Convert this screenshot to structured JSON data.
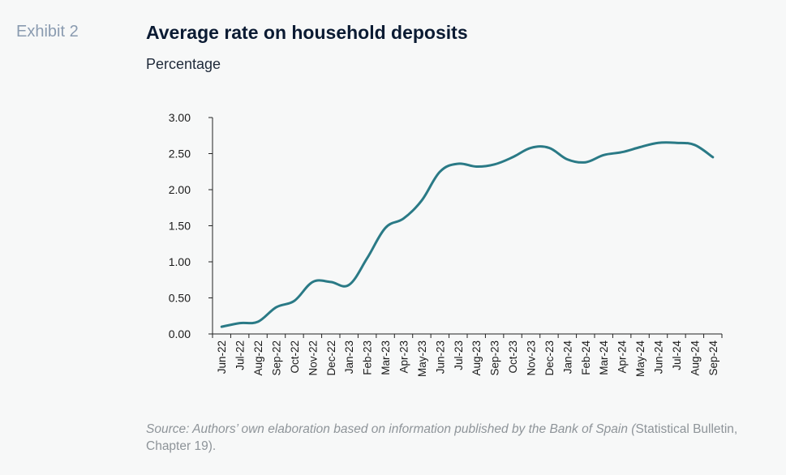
{
  "header": {
    "exhibit": "Exhibit 2",
    "title": "Average rate on household deposits",
    "subtitle": "Percentage"
  },
  "source": {
    "italic": "Source: Authors’ own elaboration based on information published by the Bank of Spain (",
    "plain": "Statistical Bulletin, Chapter 19)."
  },
  "colors": {
    "line": "#2a7a86",
    "axis": "#222222",
    "text": "#1a1a1a"
  },
  "chart_data": {
    "type": "line",
    "title": "Average rate on household deposits",
    "ylabel": "Percentage",
    "xlabel": "",
    "ylim": [
      0,
      3
    ],
    "yticks": [
      "0.00",
      "0.50",
      "1.00",
      "1.50",
      "2.00",
      "2.50",
      "3.00"
    ],
    "grid": false,
    "categories": [
      "Jun-22",
      "Jul-22",
      "Aug-22",
      "Sep-22",
      "Oct-22",
      "Nov-22",
      "Dec-22",
      "Jan-23",
      "Feb-23",
      "Mar-23",
      "Apr-23",
      "May-23",
      "Jun-23",
      "Jul-23",
      "Aug-23",
      "Sep-23",
      "Oct-23",
      "Nov-23",
      "Dec-23",
      "Jan-24",
      "Feb-24",
      "Mar-24",
      "Apr-24",
      "May-24",
      "Jun-24",
      "Jul-24",
      "Aug-24",
      "Sep-24"
    ],
    "series": [
      {
        "values": [
          0.1,
          0.15,
          0.17,
          0.37,
          0.46,
          0.72,
          0.72,
          0.68,
          1.05,
          1.47,
          1.6,
          1.85,
          2.25,
          2.36,
          2.32,
          2.35,
          2.45,
          2.58,
          2.58,
          2.42,
          2.38,
          2.48,
          2.52,
          2.59,
          2.65,
          2.65,
          2.62,
          2.45
        ]
      }
    ]
  }
}
